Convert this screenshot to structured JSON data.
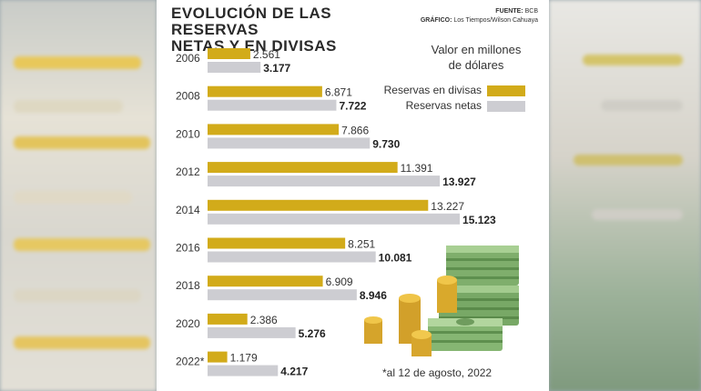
{
  "header": {
    "title_line1": "EVOLUCIÓN DE LAS RESERVAS",
    "title_line2": "NETAS Y EN DIVISAS",
    "source_label": "FUENTE:",
    "source_value": "BCB",
    "graphic_label": "GRÁFICO:",
    "graphic_value": "Los Tiempos/Wilson Cahuaya"
  },
  "units_note_line1": "Valor en millones",
  "units_note_line2": "de dólares",
  "legend": [
    {
      "label": "Reservas en divisas",
      "color": "#d2ab1a"
    },
    {
      "label": "Reservas netas",
      "color": "#cdcdd2"
    }
  ],
  "footnote": "*al 12 de agosto, 2022",
  "chart_data": {
    "type": "bar",
    "orientation": "horizontal",
    "categories": [
      "2006",
      "2008",
      "2010",
      "2012",
      "2014",
      "2016",
      "2018",
      "2020",
      "2022*"
    ],
    "series": [
      {
        "name": "Reservas en divisas",
        "color": "#d2ab1a",
        "values": [
          2561,
          6871,
          7866,
          11391,
          13227,
          8251,
          6909,
          2386,
          1179
        ],
        "labels": [
          "2.561",
          "6.871",
          "7.866",
          "11.391",
          "13.227",
          "8.251",
          "6.909",
          "2.386",
          "1.179"
        ]
      },
      {
        "name": "Reservas netas",
        "color": "#cdcdd2",
        "values": [
          3177,
          7722,
          9730,
          13927,
          15123,
          10081,
          8946,
          5276,
          4217
        ],
        "labels": [
          "3.177",
          "7.722",
          "9.730",
          "13.927",
          "15.123",
          "10.081",
          "8.946",
          "5.276",
          "4.217"
        ]
      }
    ],
    "xlim": [
      0,
      16000
    ],
    "grid": false,
    "legend_position": "top-right"
  }
}
